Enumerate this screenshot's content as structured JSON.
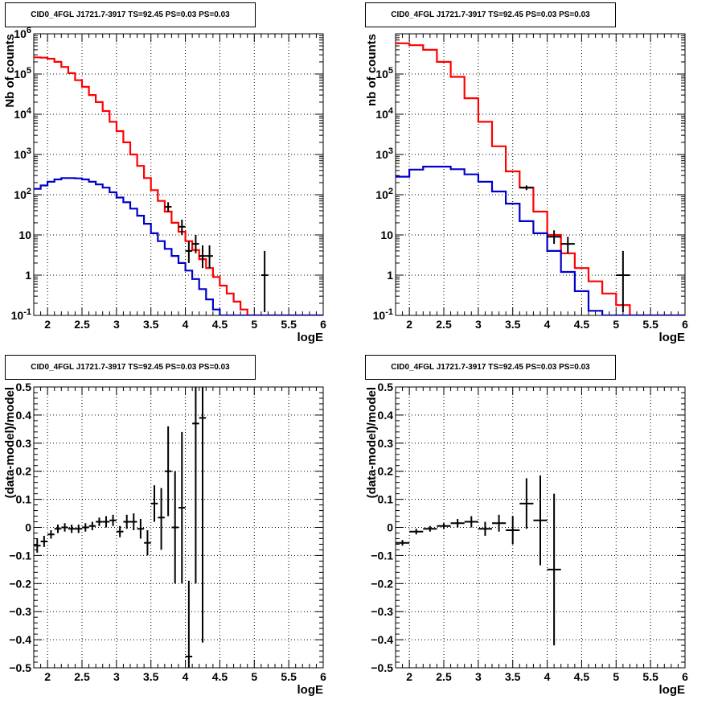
{
  "colors": {
    "data": "#000000",
    "model_total": "#ff0000",
    "model_source": "#0000cc"
  },
  "chart_data": [
    {
      "id": "counts-left",
      "type": "line",
      "title": "CID0_4FGL J1721.7-3917 TS=92.45 PS=0.03 PS=0.03",
      "xlabel": "logE",
      "ylabel": "Nb of counts",
      "xlim": [
        1.8,
        6.0
      ],
      "ylim": [
        0.1,
        1000000
      ],
      "yscale": "log",
      "grid": true,
      "xticks": [
        "2",
        "2.5",
        "3",
        "3.5",
        "4",
        "4.5",
        "5",
        "5.5",
        "6"
      ],
      "yticks": [
        "10⁻¹",
        "1",
        "10",
        "10²",
        "10³",
        "10⁴",
        "10⁵",
        "10⁶"
      ],
      "series": [
        {
          "role": "model_total",
          "style": "step",
          "edges": [
            1.8,
            1.9,
            2.0,
            2.1,
            2.2,
            2.3,
            2.4,
            2.5,
            2.6,
            2.7,
            2.8,
            2.9,
            3.0,
            3.1,
            3.2,
            3.3,
            3.4,
            3.5,
            3.6,
            3.7,
            3.8,
            3.9,
            4.0,
            4.1,
            4.2,
            4.3,
            4.4,
            4.5,
            4.6,
            4.7,
            4.8,
            4.9,
            5.0,
            5.1,
            5.2,
            5.3,
            5.4,
            5.5,
            5.6,
            5.7,
            5.8,
            5.9,
            6.0
          ],
          "values": [
            260000,
            255000,
            240000,
            200000,
            150000,
            105000,
            70000,
            48000,
            30000,
            20000,
            12000,
            6500,
            3800,
            2000,
            1000,
            520,
            260,
            130,
            70,
            38,
            20,
            12,
            7,
            4.2,
            2.5,
            1.5,
            0.9,
            0.55,
            0.35,
            0.22,
            0.14,
            0.1,
            0.1,
            0.1,
            0.1,
            0.1,
            0.1,
            0.1,
            0.1,
            0.1,
            0.1,
            0.1
          ]
        },
        {
          "role": "model_source",
          "style": "step",
          "edges": [
            1.8,
            1.9,
            2.0,
            2.1,
            2.2,
            2.3,
            2.4,
            2.5,
            2.6,
            2.7,
            2.8,
            2.9,
            3.0,
            3.1,
            3.2,
            3.3,
            3.4,
            3.5,
            3.6,
            3.7,
            3.8,
            3.9,
            4.0,
            4.1,
            4.2,
            4.3,
            4.4,
            4.5,
            4.6,
            4.7,
            4.8,
            4.9,
            5.0,
            5.1,
            5.2,
            5.3,
            5.4,
            5.5,
            5.6,
            5.7,
            5.8,
            5.9,
            6.0
          ],
          "values": [
            140,
            170,
            210,
            240,
            260,
            260,
            255,
            240,
            210,
            180,
            150,
            115,
            85,
            65,
            45,
            30,
            19,
            11,
            7,
            4.5,
            3,
            2,
            1.3,
            0.8,
            0.45,
            0.25,
            0.14,
            0.1,
            0.1,
            0.1,
            0.1,
            0.1,
            0.1,
            0.1,
            0.1,
            0.1,
            0.1,
            0.1,
            0.1,
            0.1,
            0.1,
            0.1
          ]
        },
        {
          "role": "data",
          "style": "errorbar",
          "x": [
            3.75,
            3.95,
            4.05,
            4.15,
            4.25,
            4.35,
            5.15
          ],
          "xerr": 0.05,
          "y": [
            50,
            16,
            4,
            6,
            3,
            3,
            1
          ],
          "ylo": [
            38,
            10,
            2,
            3.5,
            1.5,
            1.5,
            0.12
          ],
          "yhi": [
            65,
            24,
            7,
            10,
            5.5,
            5.5,
            4
          ]
        }
      ]
    },
    {
      "id": "counts-right",
      "type": "line",
      "title": "CID0_4FGL J1721.7-3917 TS=92.45 PS=0.03 PS=0.03",
      "xlabel": "logE",
      "ylabel": "nb of counts",
      "xlim": [
        1.8,
        6.0
      ],
      "ylim": [
        0.1,
        1000000
      ],
      "yscale": "log",
      "grid": true,
      "xticks": [
        "2",
        "2.5",
        "3",
        "3.5",
        "4",
        "4.5",
        "5",
        "5.5",
        "6"
      ],
      "yticks": [
        "10⁻¹",
        "1",
        "10",
        "10²",
        "10³",
        "10⁴",
        "10⁵"
      ],
      "series": [
        {
          "role": "model_total",
          "style": "step",
          "edges": [
            1.8,
            2.0,
            2.2,
            2.4,
            2.6,
            2.8,
            3.0,
            3.2,
            3.4,
            3.6,
            3.8,
            4.0,
            4.2,
            4.4,
            4.6,
            4.8,
            5.0,
            5.2,
            5.4,
            5.6,
            5.8,
            6.0
          ],
          "values": [
            580000,
            520000,
            400000,
            200000,
            85000,
            25000,
            6500,
            1600,
            380,
            150,
            38,
            10,
            3.5,
            1.5,
            0.7,
            0.35,
            0.18,
            0.1,
            0.1,
            0.1,
            0.1
          ]
        },
        {
          "role": "model_source",
          "style": "step",
          "edges": [
            1.8,
            2.0,
            2.2,
            2.4,
            2.6,
            2.8,
            3.0,
            3.2,
            3.4,
            3.6,
            3.8,
            4.0,
            4.2,
            4.4,
            4.6,
            4.8,
            5.0,
            5.2,
            5.4,
            5.6,
            5.8,
            6.0
          ],
          "values": [
            280,
            420,
            500,
            500,
            430,
            320,
            210,
            120,
            60,
            22,
            11,
            4,
            1.2,
            0.4,
            0.13,
            0.1,
            0.1,
            0.1,
            0.1,
            0.1,
            0.1
          ]
        },
        {
          "role": "data",
          "style": "errorbar",
          "x": [
            3.7,
            4.1,
            4.3,
            5.1
          ],
          "xerr": 0.1,
          "y": [
            150,
            9,
            6,
            1
          ],
          "ylo": [
            130,
            6,
            3.5,
            0.12
          ],
          "yhi": [
            170,
            13,
            9,
            4
          ]
        }
      ]
    },
    {
      "id": "residuals-left",
      "type": "scatter",
      "title": "CID0_4FGL J1721.7-3917 TS=92.45 PS=0.03 PS=0.03",
      "xlabel": "logE",
      "ylabel": "(data-model)/model",
      "xlim": [
        1.8,
        6.0
      ],
      "ylim": [
        -0.5,
        0.5
      ],
      "grid": true,
      "xticks": [
        "2",
        "2.5",
        "3",
        "3.5",
        "4",
        "4.5",
        "5",
        "5.5",
        "6"
      ],
      "yticks": [
        "−0.5",
        "−0.4",
        "−0.3",
        "−0.2",
        "−0.1",
        "0",
        "0.1",
        "0.2",
        "0.3",
        "0.4",
        "0.5"
      ],
      "series": [
        {
          "role": "data",
          "style": "errorbar",
          "x": [
            1.85,
            1.95,
            2.05,
            2.15,
            2.25,
            2.35,
            2.45,
            2.55,
            2.65,
            2.75,
            2.85,
            2.95,
            3.05,
            3.15,
            3.25,
            3.35,
            3.45,
            3.55,
            3.65,
            3.75,
            3.85,
            3.95,
            4.05,
            4.15,
            4.25
          ],
          "xerr": 0.05,
          "y": [
            -0.065,
            -0.05,
            -0.025,
            -0.005,
            0.0,
            -0.005,
            -0.005,
            0.0,
            0.005,
            0.02,
            0.02,
            0.025,
            -0.015,
            0.02,
            0.02,
            -0.005,
            -0.055,
            0.085,
            0.035,
            0.2,
            0.0,
            0.07,
            -0.46,
            0.37,
            0.39
          ],
          "ylo": [
            -0.09,
            -0.07,
            -0.04,
            -0.02,
            -0.015,
            -0.02,
            -0.02,
            -0.015,
            -0.01,
            0.005,
            0.0,
            0.005,
            -0.035,
            -0.005,
            -0.01,
            -0.04,
            -0.1,
            0.02,
            -0.08,
            0.04,
            -0.2,
            -0.2,
            -0.5,
            -0.2,
            -0.41
          ],
          "yhi": [
            -0.04,
            -0.03,
            -0.01,
            0.01,
            0.015,
            0.01,
            0.01,
            0.015,
            0.02,
            0.035,
            0.04,
            0.045,
            0.005,
            0.045,
            0.05,
            0.03,
            -0.01,
            0.15,
            0.14,
            0.36,
            0.2,
            0.34,
            -0.19,
            0.5,
            0.5
          ]
        }
      ]
    },
    {
      "id": "residuals-right",
      "type": "scatter",
      "title": "CID0_4FGL J1721.7-3917 TS=92.45 PS=0.03 PS=0.03",
      "xlabel": "logE",
      "ylabel": "(data-model)/model",
      "xlim": [
        1.8,
        6.0
      ],
      "ylim": [
        -0.5,
        0.5
      ],
      "grid": true,
      "xticks": [
        "2",
        "2.5",
        "3",
        "3.5",
        "4",
        "4.5",
        "5",
        "5.5",
        "6"
      ],
      "yticks": [
        "−0.5",
        "−0.4",
        "−0.3",
        "−0.2",
        "−0.1",
        "0",
        "0.1",
        "0.2",
        "0.3",
        "0.4",
        "0.5"
      ],
      "series": [
        {
          "role": "data",
          "style": "errorbar",
          "x": [
            1.9,
            2.1,
            2.3,
            2.5,
            2.7,
            2.9,
            3.1,
            3.3,
            3.5,
            3.7,
            3.9,
            4.1
          ],
          "xerr": 0.1,
          "y": [
            -0.055,
            -0.015,
            -0.005,
            0.005,
            0.015,
            0.02,
            -0.005,
            0.015,
            -0.01,
            0.085,
            0.025,
            -0.15
          ],
          "ylo": [
            -0.065,
            -0.025,
            -0.015,
            -0.005,
            0.0,
            0.0,
            -0.03,
            -0.015,
            -0.06,
            -0.005,
            -0.135,
            -0.42
          ],
          "yhi": [
            -0.045,
            -0.005,
            0.005,
            0.015,
            0.03,
            0.04,
            0.02,
            0.045,
            0.04,
            0.175,
            0.185,
            0.12
          ]
        }
      ]
    }
  ]
}
